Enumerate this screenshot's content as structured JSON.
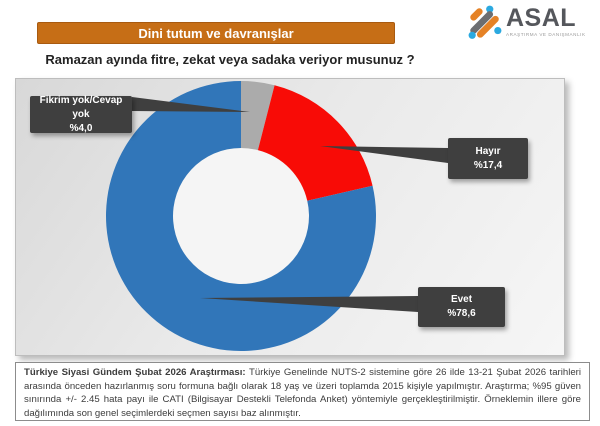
{
  "header": {
    "section_title": "Dini tutum ve davranışlar",
    "question": "Ramazan ayında fitre, zekat veya sadaka veriyor musunuz ?"
  },
  "logo": {
    "name": "ASAL",
    "tagline": "ARAŞTIRMA VE DANIŞMANLIK"
  },
  "chart_data": {
    "type": "pie",
    "donut": true,
    "title": "Ramazan ayında fitre, zekat veya sadaka veriyor musunuz ?",
    "categories": [
      "Evet",
      "Hayır",
      "Fikrim yok/Cevap yok"
    ],
    "values": [
      78.6,
      17.4,
      4.0
    ],
    "value_labels": [
      "%78,6",
      "%17,4",
      "%4,0"
    ],
    "start_angle_deg": 0,
    "direction": "clockwise",
    "legend_position": "callouts",
    "segments": [
      {
        "label": "Fikrim yok/Cevap yok",
        "pct": 4.0,
        "color": "#ABABAB"
      },
      {
        "label": "Hayır",
        "pct": 17.4,
        "color": "#F80B06"
      },
      {
        "label": "Evet",
        "pct": 78.6,
        "color": "#3176B9"
      }
    ]
  },
  "callouts": [
    {
      "label": "Fikrim yok/Cevap yok",
      "value": "%4,0"
    },
    {
      "label": "Hayır",
      "value": "%17,4"
    },
    {
      "label": "Evet",
      "value": "%78,6"
    }
  ],
  "footer": {
    "lead": "Türkiye Siyasi Gündem Şubat 2026 Araştırması: ",
    "body": "Türkiye Genelinde NUTS-2 sistemine göre 26 ilde 13-21 Şubat 2026 tarihleri arasında önceden hazırlanmış soru formuna bağlı olarak 18 yaş ve üzeri toplamda 2015 kişiyle yapılmıştır. Araştırma; %95 güven sınırında +/- 2.45 hata payı ile CATI (Bilgisayar Destekli Telefonda Anket) yöntemiyle gerçekleştirilmiştir. Örneklemin illere göre dağılımında son genel seçimlerdeki seçmen sayısı baz alınmıştır."
  },
  "colors": {
    "accent_orange": "#C66E16",
    "evet_blue": "#3176B9",
    "hayir_red": "#F80B06",
    "fikrim_gray": "#ABABAB",
    "callout_bg": "#3F3F3F",
    "logo_orange": "#E58226",
    "logo_blue": "#2BA9E0",
    "logo_gray": "#6D6E71"
  }
}
